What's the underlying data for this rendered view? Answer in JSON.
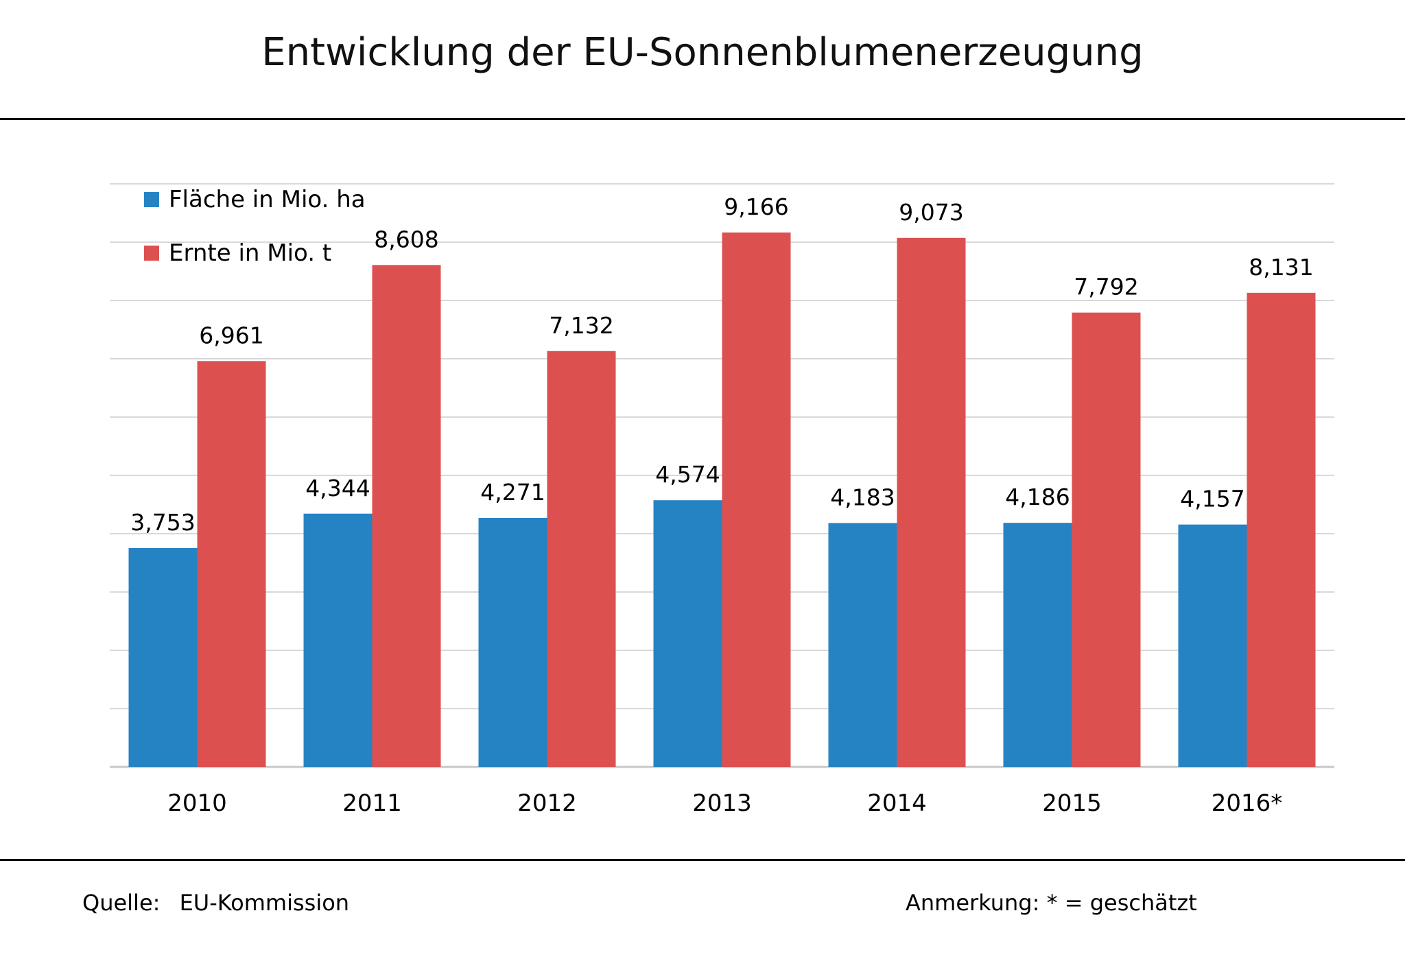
{
  "title": "Entwicklung der EU-Sonnenblumenerzeugung",
  "footer": {
    "source_label": "Quelle:",
    "source_value": "EU-Kommission",
    "note": "Anmerkung: * = geschätzt"
  },
  "chart_data": {
    "type": "bar",
    "title": "Entwicklung der EU-Sonnenblumenerzeugung",
    "xlabel": "",
    "ylabel": "",
    "ylim": [
      0,
      10
    ],
    "grid": true,
    "legend_position": "top-left",
    "categories": [
      "2010",
      "2011",
      "2012",
      "2013",
      "2014",
      "2015",
      "2016*"
    ],
    "series": [
      {
        "name": "Fläche in Mio. ha",
        "color": "#2583c3",
        "values": [
          3.753,
          4.344,
          4.271,
          4.574,
          4.183,
          4.186,
          4.157
        ],
        "labels": [
          "3,753",
          "4,344",
          "4,271",
          "4,574",
          "4,183",
          "4,186",
          "4,157"
        ]
      },
      {
        "name": "Ernte in Mio. t",
        "color": "#dd5050",
        "values": [
          6.961,
          8.608,
          7.132,
          9.166,
          9.073,
          7.792,
          8.131
        ],
        "labels": [
          "6,961",
          "8,608",
          "7,132",
          "9,166",
          "9,073",
          "7,792",
          "8,131"
        ]
      }
    ]
  }
}
